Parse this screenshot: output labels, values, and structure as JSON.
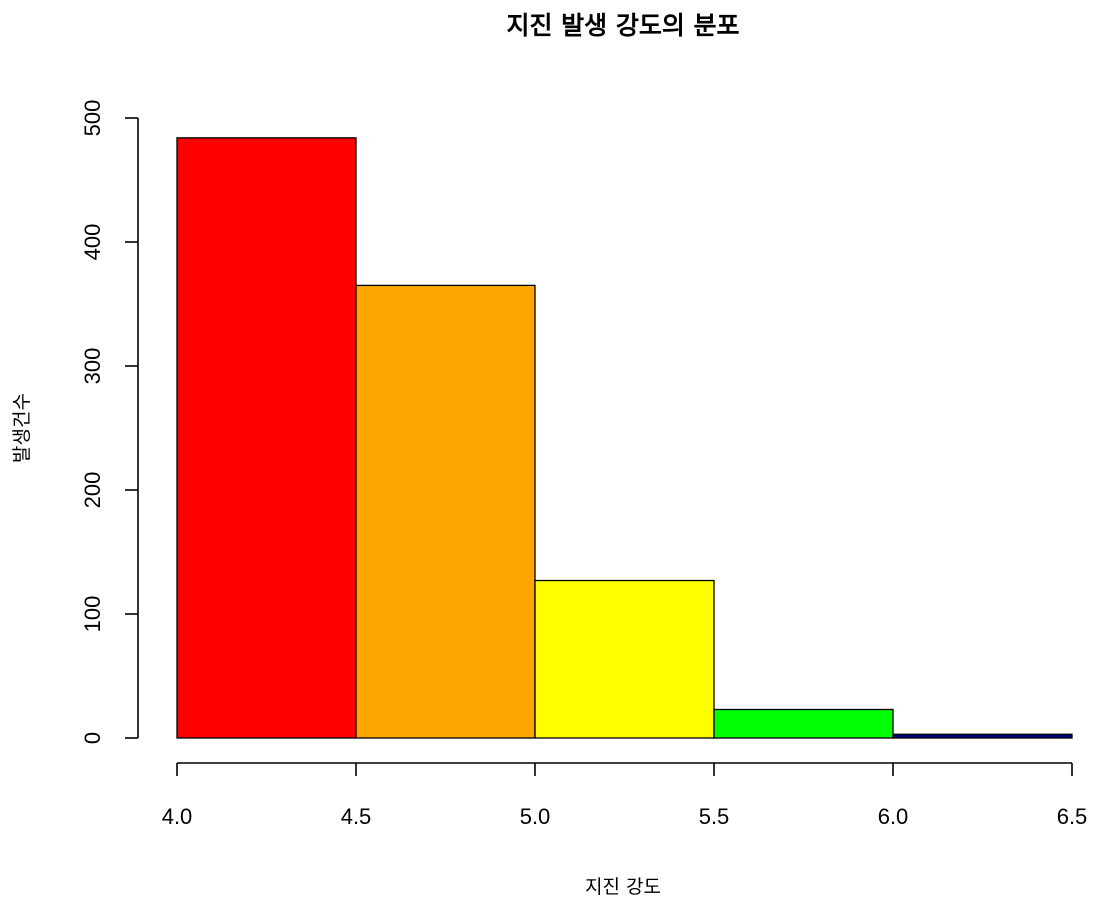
{
  "chart_data": {
    "type": "bar",
    "title": "지진 발생 강도의 분포",
    "xlabel": "지진 강도",
    "ylabel": "발생건수",
    "bins": [
      {
        "from": 4.0,
        "to": 4.5,
        "value": 484,
        "color": "#FF0000"
      },
      {
        "from": 4.5,
        "to": 5.0,
        "value": 365,
        "color": "#FFA500"
      },
      {
        "from": 5.0,
        "to": 5.5,
        "value": 127,
        "color": "#FFFF00"
      },
      {
        "from": 5.5,
        "to": 6.0,
        "value": 23,
        "color": "#00FF00"
      },
      {
        "from": 6.0,
        "to": 6.5,
        "value": 3,
        "color": "#000080"
      }
    ],
    "xticks": [
      "4.0",
      "4.5",
      "5.0",
      "5.5",
      "6.0",
      "6.5"
    ],
    "yticks": [
      "0",
      "100",
      "200",
      "300",
      "400",
      "500"
    ],
    "xlim": [
      4.0,
      6.5
    ],
    "ylim": [
      0,
      500
    ],
    "grid": false,
    "legend": "none"
  }
}
